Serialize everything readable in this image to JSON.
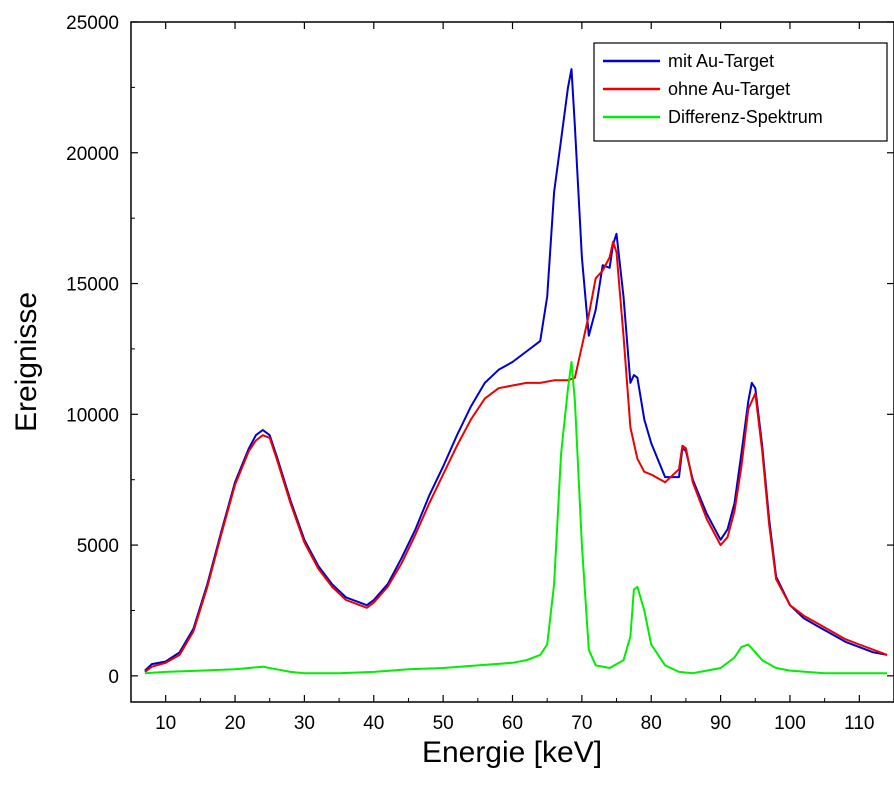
{
  "chart_data": {
    "type": "line",
    "xlabel": "Energie [keV]",
    "ylabel": "Ereignisse",
    "xlim": [
      5,
      115
    ],
    "ylim": [
      -1000,
      25000
    ],
    "xticks": [
      10,
      20,
      30,
      40,
      50,
      60,
      70,
      80,
      90,
      100,
      110
    ],
    "xtick_labels": [
      "10",
      "20",
      "30",
      "40",
      "50",
      "60",
      "70",
      "80",
      "90",
      "100",
      "110"
    ],
    "yticks": [
      0,
      5000,
      10000,
      15000,
      20000,
      25000
    ],
    "ytick_labels": [
      "0",
      "5000",
      "10000",
      "15000",
      "20000",
      "25000"
    ],
    "grid": false,
    "legend_position": "top-right",
    "series": [
      {
        "name": "mit Au-Target",
        "color": "#0000cc",
        "x": [
          7,
          8,
          10,
          12,
          14,
          16,
          18,
          20,
          22,
          23,
          24,
          25,
          26,
          28,
          30,
          32,
          34,
          36,
          38,
          39,
          40,
          42,
          44,
          46,
          48,
          50,
          52,
          54,
          56,
          58,
          60,
          62,
          64,
          65,
          66,
          67,
          68,
          68.5,
          69,
          70,
          71,
          72,
          73,
          74,
          74.5,
          75,
          76,
          77,
          77.5,
          78,
          79,
          80,
          82,
          84,
          84.5,
          85,
          86,
          88,
          90,
          91,
          92,
          93,
          94,
          94.5,
          95,
          96,
          97,
          98,
          100,
          102,
          104,
          106,
          108,
          110,
          112,
          114
        ],
        "values": [
          200,
          450,
          550,
          900,
          1800,
          3500,
          5500,
          7400,
          8700,
          9200,
          9400,
          9200,
          8400,
          6700,
          5200,
          4200,
          3500,
          3000,
          2800,
          2700,
          2900,
          3500,
          4500,
          5600,
          6900,
          8000,
          9200,
          10300,
          11200,
          11700,
          12000,
          12400,
          12800,
          14500,
          18500,
          20500,
          22500,
          23200,
          21000,
          16000,
          13000,
          14000,
          15700,
          15600,
          16500,
          16900,
          14500,
          11200,
          11500,
          11400,
          9800,
          8900,
          7600,
          7600,
          8700,
          8600,
          7500,
          6200,
          5200,
          5600,
          6600,
          8500,
          10500,
          11200,
          11000,
          8800,
          6000,
          3800,
          2700,
          2200,
          1900,
          1600,
          1300,
          1100,
          900,
          800
        ]
      },
      {
        "name": "ohne Au-Target",
        "color": "#ee0000",
        "x": [
          7,
          8,
          10,
          12,
          14,
          16,
          18,
          20,
          22,
          23,
          24,
          25,
          26,
          28,
          30,
          32,
          34,
          36,
          38,
          39,
          40,
          42,
          44,
          46,
          48,
          50,
          52,
          54,
          56,
          58,
          60,
          62,
          64,
          66,
          68,
          69,
          70,
          71,
          72,
          73,
          74,
          74.5,
          75,
          76,
          77,
          78,
          79,
          80,
          82,
          84,
          84.5,
          85,
          86,
          88,
          90,
          91,
          92,
          93,
          94,
          95,
          96,
          97,
          98,
          100,
          102,
          104,
          106,
          108,
          110,
          112,
          114
        ],
        "values": [
          150,
          350,
          500,
          800,
          1700,
          3400,
          5400,
          7300,
          8600,
          9000,
          9200,
          9100,
          8300,
          6600,
          5100,
          4100,
          3400,
          2900,
          2700,
          2600,
          2800,
          3400,
          4300,
          5400,
          6600,
          7700,
          8800,
          9800,
          10600,
          11000,
          11100,
          11200,
          11200,
          11300,
          11300,
          11400,
          12600,
          13800,
          15200,
          15500,
          16000,
          16600,
          16200,
          13000,
          9500,
          8300,
          7800,
          7700,
          7400,
          7900,
          8800,
          8700,
          7400,
          6000,
          5000,
          5300,
          6300,
          8000,
          10200,
          10800,
          8600,
          5800,
          3700,
          2700,
          2300,
          2000,
          1700,
          1400,
          1200,
          1000,
          800
        ]
      },
      {
        "name": "Differenz-Spektrum",
        "color": "#00ee00",
        "x": [
          7,
          10,
          15,
          20,
          22,
          24,
          26,
          28,
          30,
          35,
          40,
          45,
          50,
          55,
          60,
          62,
          64,
          65,
          66,
          67,
          68,
          68.5,
          69,
          70,
          71,
          72,
          74,
          76,
          77,
          77.5,
          78,
          79,
          80,
          82,
          84,
          86,
          88,
          90,
          92,
          93,
          94,
          95,
          96,
          98,
          100,
          105,
          110,
          114
        ],
        "values": [
          100,
          150,
          200,
          250,
          300,
          350,
          250,
          150,
          100,
          100,
          150,
          250,
          300,
          400,
          500,
          600,
          800,
          1200,
          3500,
          8500,
          11000,
          12000,
          10500,
          5000,
          1000,
          400,
          300,
          600,
          1500,
          3300,
          3400,
          2500,
          1200,
          400,
          150,
          100,
          200,
          300,
          700,
          1100,
          1200,
          900,
          600,
          300,
          200,
          100,
          100,
          100
        ]
      }
    ]
  }
}
